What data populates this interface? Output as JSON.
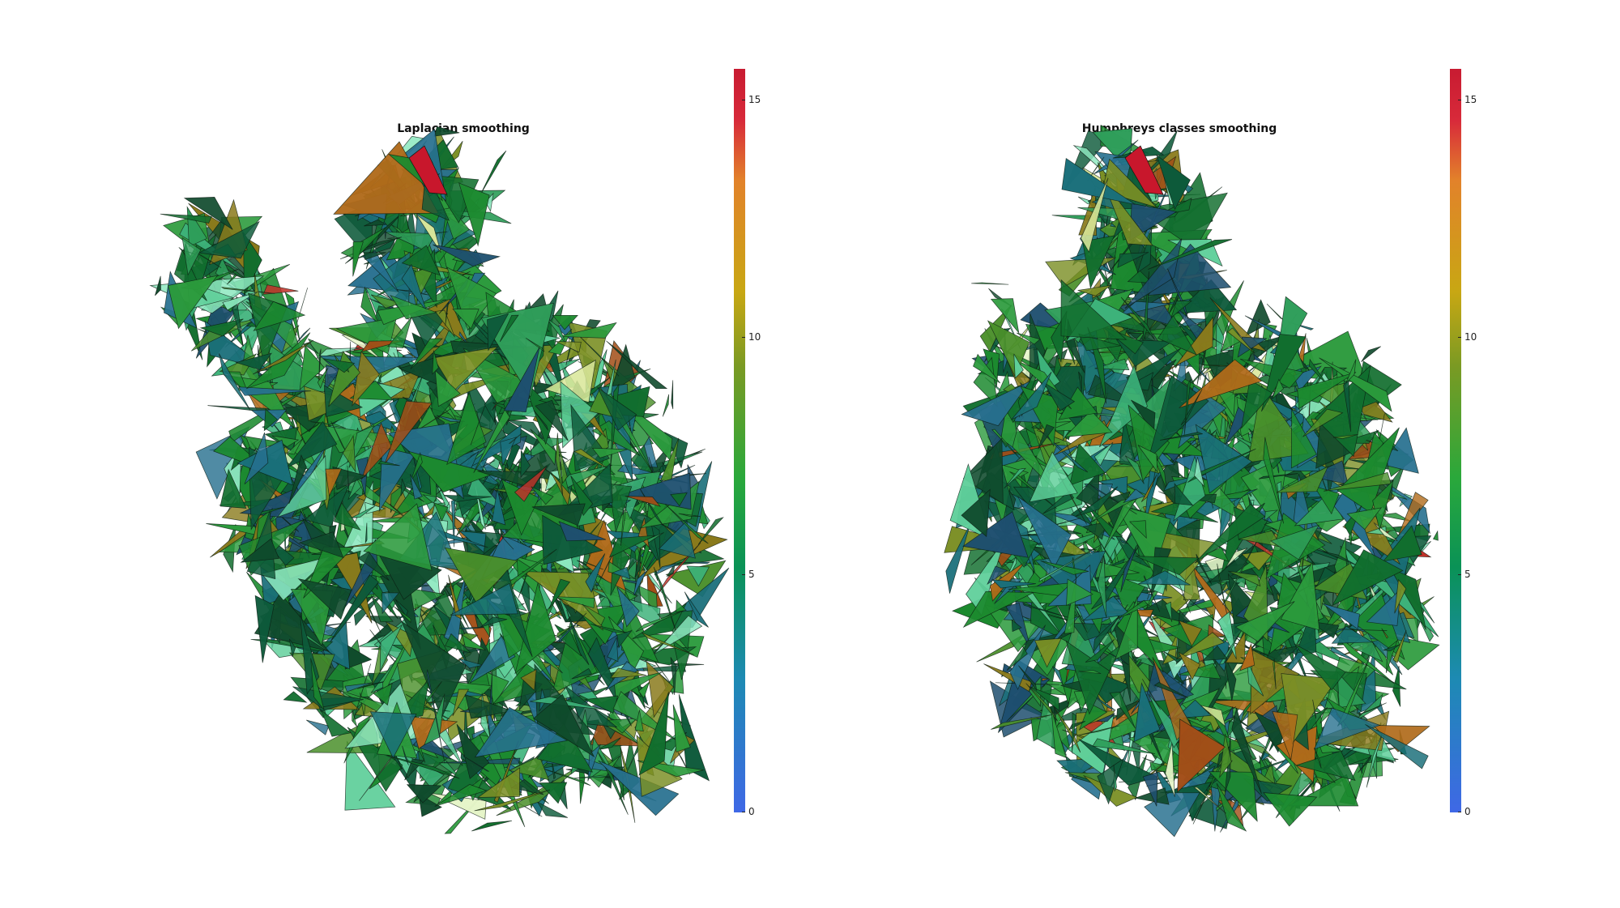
{
  "panels": [
    {
      "id": "laplacian",
      "title": "Laplacian smoothing",
      "colorbar": {
        "min": 0,
        "max": 15.7,
        "ticks": [
          "0",
          "5",
          "10",
          "15"
        ]
      }
    },
    {
      "id": "humphreys",
      "title": "Humphreys classes smoothing",
      "colorbar": {
        "min": 0,
        "max": 15.7,
        "ticks": [
          "0",
          "5",
          "10",
          "15"
        ]
      }
    }
  ],
  "colormap": [
    "#3f68e6",
    "#1d8ab3",
    "#0a9256",
    "#2aa83b",
    "#7a9a23",
    "#c8a713",
    "#e2822a",
    "#d82a3a"
  ]
}
